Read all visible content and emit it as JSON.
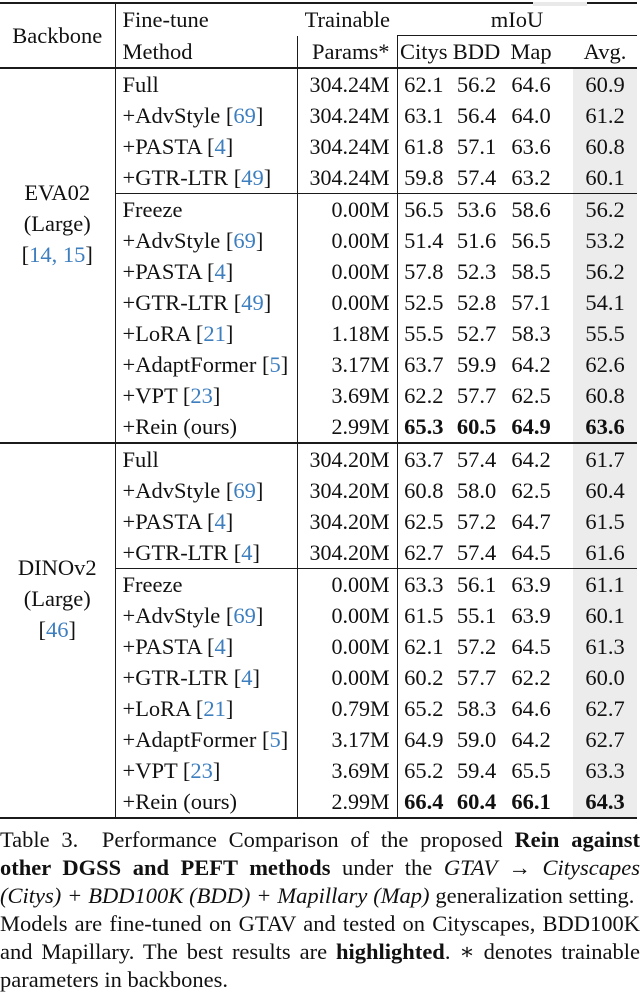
{
  "colors": {
    "citation_blue": "#3d7ebf",
    "avg_column_shade": "#ececec",
    "rule_color": "#1b1b1b",
    "text_color": "#111111"
  },
  "table": {
    "header": {
      "backbone": "Backbone",
      "method_line1": "Fine-tune",
      "method_line2": "Method",
      "params_line1": "Trainable",
      "params_line2": "Params*",
      "miou": "mIoU",
      "subcols": [
        "Citys",
        "BDD",
        "Map",
        "Avg."
      ]
    },
    "groups": [
      {
        "backbone": {
          "lines": [
            "EVA02",
            "(Large)"
          ],
          "refs": [
            "14",
            "15"
          ]
        },
        "blocks": [
          {
            "rows": [
              {
                "method": "Full",
                "ref": null,
                "params": "304.24M",
                "values": [
                  "62.1",
                  "56.2",
                  "64.6",
                  "60.9"
                ],
                "bold": false
              },
              {
                "method": "+AdvStyle",
                "ref": "69",
                "params": "304.24M",
                "values": [
                  "63.1",
                  "56.4",
                  "64.0",
                  "61.2"
                ],
                "bold": false
              },
              {
                "method": "+PASTA",
                "ref": "4",
                "params": "304.24M",
                "values": [
                  "61.8",
                  "57.1",
                  "63.6",
                  "60.8"
                ],
                "bold": false
              },
              {
                "method": "+GTR-LTR",
                "ref": "49",
                "params": "304.24M",
                "values": [
                  "59.8",
                  "57.4",
                  "63.2",
                  "60.1"
                ],
                "bold": false
              }
            ]
          },
          {
            "divider_above": true,
            "rows": [
              {
                "method": "Freeze",
                "ref": null,
                "params": "0.00M",
                "values": [
                  "56.5",
                  "53.6",
                  "58.6",
                  "56.2"
                ],
                "bold": false
              },
              {
                "method": "+AdvStyle",
                "ref": "69",
                "params": "0.00M",
                "values": [
                  "51.4",
                  "51.6",
                  "56.5",
                  "53.2"
                ],
                "bold": false
              },
              {
                "method": "+PASTA",
                "ref": "4",
                "params": "0.00M",
                "values": [
                  "57.8",
                  "52.3",
                  "58.5",
                  "56.2"
                ],
                "bold": false
              },
              {
                "method": "+GTR-LTR",
                "ref": "49",
                "params": "0.00M",
                "values": [
                  "52.5",
                  "52.8",
                  "57.1",
                  "54.1"
                ],
                "bold": false
              }
            ]
          },
          {
            "rows": [
              {
                "method": "+LoRA",
                "ref": "21",
                "params": "1.18M",
                "values": [
                  "55.5",
                  "52.7",
                  "58.3",
                  "55.5"
                ],
                "bold": false
              },
              {
                "method": "+AdaptFormer",
                "ref": "5",
                "params": "3.17M",
                "values": [
                  "63.7",
                  "59.9",
                  "64.2",
                  "62.6"
                ],
                "bold": false
              },
              {
                "method": "+VPT",
                "ref": "23",
                "params": "3.69M",
                "values": [
                  "62.2",
                  "57.7",
                  "62.5",
                  "60.8"
                ],
                "bold": false
              },
              {
                "method": "+Rein (ours)",
                "ref": null,
                "params": "2.99M",
                "values": [
                  "65.3",
                  "60.5",
                  "64.9",
                  "63.6"
                ],
                "bold": true
              }
            ]
          }
        ]
      },
      {
        "backbone": {
          "lines": [
            "DINOv2",
            "(Large)"
          ],
          "refs": [
            "46"
          ]
        },
        "blocks": [
          {
            "rows": [
              {
                "method": "Full",
                "ref": null,
                "params": "304.20M",
                "values": [
                  "63.7",
                  "57.4",
                  "64.2",
                  "61.7"
                ],
                "bold": false
              },
              {
                "method": "+AdvStyle",
                "ref": "69",
                "params": "304.20M",
                "values": [
                  "60.8",
                  "58.0",
                  "62.5",
                  "60.4"
                ],
                "bold": false
              },
              {
                "method": "+PASTA",
                "ref": "4",
                "params": "304.20M",
                "values": [
                  "62.5",
                  "57.2",
                  "64.7",
                  "61.5"
                ],
                "bold": false
              },
              {
                "method": "+GTR-LTR",
                "ref": "4",
                "params": "304.20M",
                "values": [
                  "62.7",
                  "57.4",
                  "64.5",
                  "61.6"
                ],
                "bold": false
              }
            ]
          },
          {
            "divider_above": true,
            "rows": [
              {
                "method": "Freeze",
                "ref": null,
                "params": "0.00M",
                "values": [
                  "63.3",
                  "56.1",
                  "63.9",
                  "61.1"
                ],
                "bold": false
              },
              {
                "method": "+AdvStyle",
                "ref": "69",
                "params": "0.00M",
                "values": [
                  "61.5",
                  "55.1",
                  "63.9",
                  "60.1"
                ],
                "bold": false
              },
              {
                "method": "+PASTA",
                "ref": "4",
                "params": "0.00M",
                "values": [
                  "62.1",
                  "57.2",
                  "64.5",
                  "61.3"
                ],
                "bold": false
              },
              {
                "method": "+GTR-LTR",
                "ref": "4",
                "params": "0.00M",
                "values": [
                  "60.2",
                  "57.7",
                  "62.2",
                  "60.0"
                ],
                "bold": false
              }
            ]
          },
          {
            "rows": [
              {
                "method": "+LoRA",
                "ref": "21",
                "params": "0.79M",
                "values": [
                  "65.2",
                  "58.3",
                  "64.6",
                  "62.7"
                ],
                "bold": false
              },
              {
                "method": "+AdaptFormer",
                "ref": "5",
                "params": "3.17M",
                "values": [
                  "64.9",
                  "59.0",
                  "64.2",
                  "62.7"
                ],
                "bold": false
              },
              {
                "method": "+VPT",
                "ref": "23",
                "params": "3.69M",
                "values": [
                  "65.2",
                  "59.4",
                  "65.5",
                  "63.3"
                ],
                "bold": false
              },
              {
                "method": "+Rein (ours)",
                "ref": null,
                "params": "2.99M",
                "values": [
                  "66.4",
                  "60.4",
                  "66.1",
                  "64.3"
                ],
                "bold": true
              }
            ]
          }
        ]
      }
    ]
  },
  "caption": {
    "segments": [
      {
        "text": "Table 3.  Performance Comparison of the proposed ",
        "style": "normal"
      },
      {
        "text": "Rein against other DGSS and PEFT methods",
        "style": "bold"
      },
      {
        "text": " under the ",
        "style": "normal"
      },
      {
        "text": "GTAV → Cityscapes (Citys) + BDD100K (BDD) + Mapillary (Map)",
        "style": "italic"
      },
      {
        "text": " generalization setting.  Models are fine-tuned on GTAV and tested on Cityscapes, BDD100K and Mapillary. The best results are ",
        "style": "normal"
      },
      {
        "text": "highlighted",
        "style": "bold"
      },
      {
        "text": ". ∗ denotes trainable parameters in backbones.",
        "style": "normal"
      }
    ]
  }
}
